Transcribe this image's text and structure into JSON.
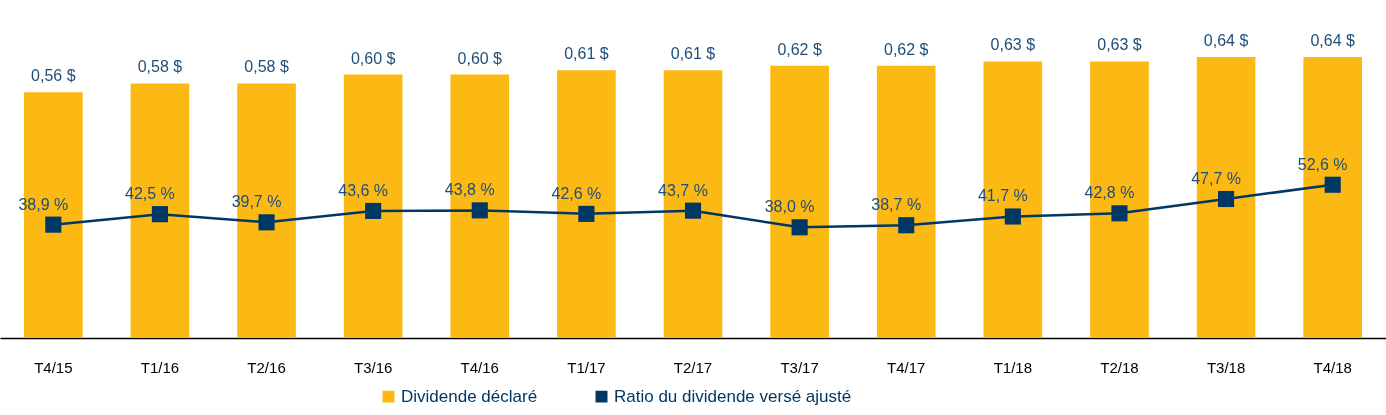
{
  "chart_data": {
    "type": "bar",
    "categories": [
      "T4/15",
      "T1/16",
      "T2/16",
      "T3/16",
      "T4/16",
      "T1/17",
      "T2/17",
      "T3/17",
      "T4/17",
      "T1/18",
      "T2/18",
      "T3/18",
      "T4/18"
    ],
    "series": [
      {
        "name": "Dividende déclaré",
        "color": "#fdb913",
        "values": [
          0.56,
          0.58,
          0.58,
          0.6,
          0.6,
          0.61,
          0.61,
          0.62,
          0.62,
          0.63,
          0.63,
          0.64,
          0.64
        ],
        "value_labels": [
          "0,56 $",
          "0,58 $",
          "0,58 $",
          "0,60 $",
          "0,60 $",
          "0,61 $",
          "0,61 $",
          "0,62 $",
          "0,62 $",
          "0,63 $",
          "0,63 $",
          "0,64 $",
          "0,64 $"
        ]
      },
      {
        "name": "Ratio du dividende versé ajusté",
        "type": "line",
        "axis": "y2",
        "color": "#003865",
        "values": [
          38.9,
          42.5,
          39.7,
          43.6,
          43.8,
          42.6,
          43.7,
          38.0,
          38.7,
          41.7,
          42.8,
          47.7,
          52.6
        ],
        "value_labels": [
          "38,9 %",
          "42,5 %",
          "39,7 %",
          "43,6 %",
          "43,8 %",
          "42,6 %",
          "43,7 %",
          "38,0 %",
          "38,7 %",
          "41,7 %",
          "42,8 %",
          "47,7 %",
          "52,6 %"
        ]
      }
    ],
    "ylim": [
      0,
      0.77
    ],
    "y2lim": [
      0,
      116
    ],
    "tick_labels": "x",
    "marker": "square",
    "legend": "bottom"
  }
}
